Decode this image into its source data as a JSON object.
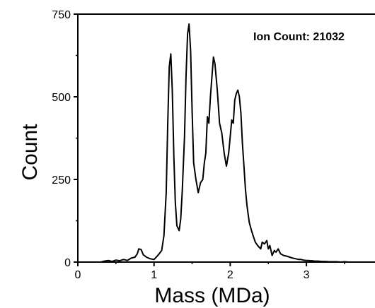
{
  "chart_data": {
    "type": "line",
    "title": "",
    "xlabel": "Mass (MDa)",
    "ylabel": "Count",
    "annotation": "Ion Count: 21032",
    "xlim": [
      0,
      3.9
    ],
    "ylim": [
      0,
      750
    ],
    "x_ticks": [
      "0",
      "1",
      "2",
      "3"
    ],
    "x_tick_values": [
      0,
      1,
      2,
      3
    ],
    "y_ticks": [
      "0",
      "250",
      "500",
      "750"
    ],
    "y_tick_values": [
      0,
      250,
      500,
      750
    ],
    "grid": false,
    "line_color": "#000000",
    "series": [
      {
        "x": [
          0.3,
          0.35,
          0.4,
          0.45,
          0.5,
          0.55,
          0.6,
          0.65,
          0.7,
          0.75,
          0.78,
          0.8,
          0.83,
          0.86,
          0.9,
          0.95,
          1.0,
          1.05,
          1.1,
          1.13,
          1.16,
          1.18,
          1.2,
          1.22,
          1.24,
          1.26,
          1.28,
          1.3,
          1.33,
          1.35,
          1.37,
          1.4,
          1.42,
          1.44,
          1.46,
          1.48,
          1.5,
          1.52,
          1.55,
          1.58,
          1.61,
          1.64,
          1.66,
          1.68,
          1.7,
          1.72,
          1.74,
          1.76,
          1.78,
          1.8,
          1.83,
          1.86,
          1.89,
          1.92,
          1.95,
          1.98,
          2.0,
          2.02,
          2.04,
          2.06,
          2.08,
          2.1,
          2.12,
          2.14,
          2.16,
          2.18,
          2.2,
          2.22,
          2.25,
          2.28,
          2.3,
          2.33,
          2.36,
          2.38,
          2.4,
          2.42,
          2.45,
          2.48,
          2.5,
          2.52,
          2.55,
          2.58,
          2.6,
          2.63,
          2.66,
          2.7,
          2.74,
          2.78,
          2.82,
          2.86,
          2.9,
          2.93,
          2.96,
          3.0,
          3.03,
          3.05,
          3.08,
          3.1,
          3.12,
          3.15,
          3.2,
          3.25,
          3.3,
          3.35,
          3.4,
          3.45,
          3.5,
          3.55,
          3.6,
          3.7,
          3.8,
          3.9
        ],
        "values": [
          0,
          3,
          5,
          2,
          6,
          4,
          8,
          5,
          12,
          15,
          25,
          40,
          38,
          22,
          15,
          10,
          8,
          20,
          35,
          80,
          210,
          420,
          590,
          630,
          520,
          320,
          180,
          110,
          95,
          130,
          210,
          380,
          560,
          690,
          720,
          640,
          460,
          300,
          250,
          210,
          240,
          250,
          300,
          330,
          440,
          420,
          500,
          560,
          620,
          600,
          520,
          420,
          390,
          330,
          290,
          330,
          380,
          430,
          420,
          490,
          510,
          520,
          500,
          450,
          360,
          290,
          220,
          170,
          120,
          95,
          80,
          60,
          50,
          45,
          40,
          60,
          55,
          65,
          40,
          50,
          20,
          35,
          30,
          40,
          25,
          20,
          18,
          15,
          12,
          10,
          8,
          8,
          6,
          5,
          5,
          4,
          4,
          3,
          3,
          3,
          2,
          2,
          1,
          1,
          1,
          0,
          1,
          0,
          0,
          0,
          0,
          0
        ]
      }
    ]
  }
}
